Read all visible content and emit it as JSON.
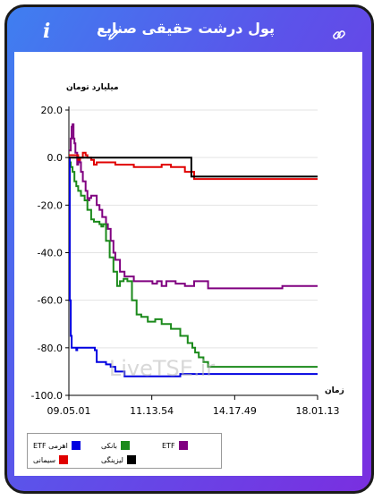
{
  "header": {
    "title": "پول درشت حقیقی صنایع"
  },
  "icons": {
    "info": "info-icon",
    "edit": "pencil-icon",
    "link": "link-icon"
  },
  "chart_data": {
    "type": "line",
    "ylabel": "میلیارد تومان",
    "xlabel": "زمان",
    "ylim": [
      -100,
      20
    ],
    "y_ticks": [
      "20.0",
      "0.0",
      "-20.0",
      "-40.0",
      "-60.0",
      "-80.0",
      "-100.0"
    ],
    "x_ticks": [
      "09.05.01",
      "11.13.54",
      "14.17.49",
      "18.01.13"
    ],
    "watermark": "LiveTSE.ir",
    "legend_position": "bottom-left",
    "grid": "horizontal",
    "x_range_minutes": [
      0,
      536
    ],
    "series": [
      {
        "name": "ETF",
        "color": "#800080",
        "x": [
          0,
          4,
          6,
          8,
          10,
          12,
          14,
          18,
          20,
          24,
          26,
          30,
          36,
          40,
          44,
          48,
          54,
          60,
          66,
          72,
          76,
          80,
          84,
          90,
          96,
          100,
          110,
          120,
          140,
          160,
          180,
          190,
          200,
          210,
          230,
          250,
          270,
          300,
          330,
          380,
          420,
          460,
          500,
          536
        ],
        "y": [
          3,
          8,
          13,
          14,
          8,
          6,
          2,
          -3,
          0,
          -2,
          -6,
          -10,
          -14,
          -18,
          -17,
          -16,
          -16,
          -20,
          -22,
          -25,
          -25,
          -28,
          -30,
          -35,
          -40,
          -43,
          -48,
          -50,
          -52,
          -52,
          -53,
          -52,
          -54,
          -52,
          -53,
          -54,
          -52,
          -55,
          -55,
          -55,
          -55,
          -54,
          -54,
          -54
        ]
      },
      {
        "name": "بانکی",
        "color": "#1b8a1b",
        "x": [
          0,
          4,
          8,
          12,
          16,
          20,
          26,
          34,
          40,
          48,
          54,
          60,
          66,
          70,
          74,
          80,
          88,
          96,
          104,
          110,
          118,
          126,
          136,
          146,
          156,
          170,
          186,
          200,
          220,
          240,
          256,
          266,
          272,
          280,
          290,
          300,
          320,
          360,
          420,
          480,
          536
        ],
        "y": [
          -2,
          -4,
          -6,
          -10,
          -12,
          -14,
          -16,
          -18,
          -22,
          -26,
          -27,
          -27,
          -28,
          -29,
          -28,
          -35,
          -42,
          -48,
          -54,
          -52,
          -51,
          -52,
          -60,
          -66,
          -67,
          -69,
          -68,
          -70,
          -72,
          -75,
          -78,
          -80,
          -82,
          -84,
          -86,
          -88,
          -88,
          -88,
          -88,
          -88,
          -88
        ]
      },
      {
        "name": "اهرمی ETF",
        "color": "#0000e0",
        "x": [
          0,
          2,
          4,
          6,
          8,
          10,
          12,
          14,
          16,
          18,
          20,
          24,
          30,
          40,
          50,
          56,
          60,
          70,
          80,
          90,
          100,
          110,
          120,
          140,
          160,
          180,
          200,
          240,
          300,
          360,
          420,
          536
        ],
        "y": [
          0,
          -60,
          -75,
          -80,
          -80,
          -80,
          -80,
          -80,
          -81,
          -80,
          -80,
          -80,
          -80,
          -80,
          -80,
          -81,
          -86,
          -86,
          -87,
          -88,
          -90,
          -90,
          -92,
          -92,
          -92,
          -92,
          -92,
          -91,
          -91,
          -91,
          -91,
          -91
        ]
      },
      {
        "name": "سیمانی",
        "color": "#e00000",
        "x": [
          0,
          6,
          10,
          16,
          20,
          24,
          30,
          36,
          40,
          48,
          54,
          60,
          70,
          80,
          100,
          120,
          140,
          160,
          180,
          200,
          210,
          220,
          230,
          240,
          250,
          260,
          270,
          300,
          360,
          420,
          480,
          536
        ],
        "y": [
          1,
          1,
          1,
          1,
          -1,
          0,
          2,
          1,
          0,
          -1,
          -3,
          -2,
          -2,
          -2,
          -3,
          -3,
          -4,
          -4,
          -4,
          -3,
          -3,
          -4,
          -4,
          -4,
          -6,
          -6,
          -9,
          -9,
          -9,
          -9,
          -9,
          -9
        ]
      },
      {
        "name": "لیزینگی",
        "color": "#000000",
        "x": [
          0,
          20,
          40,
          80,
          120,
          160,
          200,
          240,
          250,
          260,
          264,
          300,
          360,
          420,
          480,
          536
        ],
        "y": [
          0,
          0,
          0,
          0,
          0,
          0,
          0,
          0,
          0,
          0,
          -8,
          -8,
          -8,
          -8,
          -8,
          -8
        ]
      }
    ]
  }
}
